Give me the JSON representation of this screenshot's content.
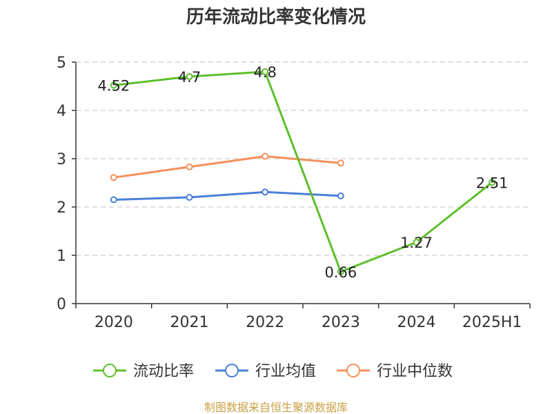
{
  "chart_data": {
    "type": "line",
    "title": "历年流动比率变化情况",
    "categories": [
      "2020",
      "2021",
      "2022",
      "2023",
      "2024",
      "2025H1"
    ],
    "ylim": [
      0,
      5
    ],
    "yticks": [
      "0",
      "1",
      "2",
      "3",
      "4",
      "5"
    ],
    "grid": "horizontal-dashed",
    "legend_position": "bottom",
    "series": [
      {
        "name": "流动比率",
        "color": "#5cbf2a",
        "values": [
          4.52,
          4.7,
          4.8,
          0.66,
          1.27,
          2.51
        ],
        "labels": [
          "4.52",
          "4.7",
          "4.8",
          "0.66",
          "1.27",
          "2.51"
        ]
      },
      {
        "name": "行业均值",
        "color": "#4a7fd6",
        "values": [
          2.15,
          2.2,
          2.31,
          2.23,
          null,
          null
        ]
      },
      {
        "name": "行业中位数",
        "color": "#f5905a",
        "values": [
          2.61,
          2.83,
          3.05,
          2.91,
          null,
          null
        ]
      }
    ],
    "source": "制图数据来自恒生聚源数据库"
  }
}
